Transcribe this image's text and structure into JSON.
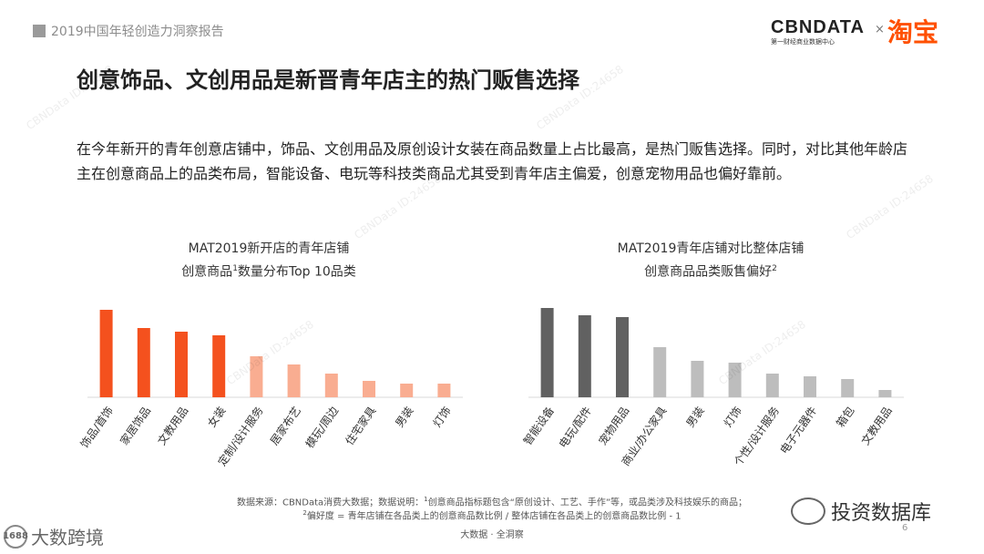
{
  "header": {
    "report_label": "2019中国年轻创造力洞察报告"
  },
  "logos": {
    "cbn_main": "CBNDATA",
    "cbn_sub": "第一财经商业数据中心",
    "times": "×",
    "taobao": "淘宝"
  },
  "title": "创意饰品、文创用品是新晋青年店主的热门贩售选择",
  "intro": "在今年新开的青年创意店铺中，饰品、文创用品及原创设计女装在商品数量上占比最高，是热门贩售选择。同时，对比其他年龄店主在创意商品上的品类布局，智能设备、电玩等科技类商品尤其受到青年店主偏爱，创意宠物用品也偏好靠前。",
  "chart_data": [
    {
      "type": "bar",
      "title_line1": "MAT2019新开店的青年店铺",
      "title_line2_pre": "创意商品",
      "title_sup": "1",
      "title_line2_post": "数量分布Top 10品类",
      "categories": [
        "饰品/首饰",
        "家居饰品",
        "文教用品",
        "女装",
        "定制/设计服务",
        "居家布艺",
        "模玩/周边",
        "住宅家具",
        "男装",
        "灯饰"
      ],
      "values": [
        96,
        76,
        72,
        68,
        45,
        36,
        26,
        18,
        15,
        15
      ],
      "ylim": [
        0,
        100
      ],
      "colors": [
        "#f4511e",
        "#f4511e",
        "#f4511e",
        "#f4511e",
        "#f9ad91",
        "#f9ad91",
        "#f9ad91",
        "#f9ad91",
        "#f9ad91",
        "#f9ad91"
      ]
    },
    {
      "type": "bar",
      "title_line1": "MAT2019青年店铺对比整体店铺",
      "title_line2_pre": "创意商品品类贩售偏好",
      "title_sup": "2",
      "title_line2_post": "",
      "categories": [
        "智能设备",
        "电玩/配件",
        "宠物用品",
        "商业/办公家具",
        "男装",
        "灯饰",
        "个性/设计服务",
        "电子元器件",
        "箱包",
        "文教用品"
      ],
      "values": [
        98,
        90,
        88,
        55,
        40,
        38,
        26,
        23,
        20,
        8
      ],
      "ylim": [
        0,
        100
      ],
      "colors": [
        "#616161",
        "#616161",
        "#616161",
        "#bdbdbd",
        "#bdbdbd",
        "#bdbdbd",
        "#bdbdbd",
        "#bdbdbd",
        "#bdbdbd",
        "#bdbdbd"
      ]
    }
  ],
  "footnote": {
    "line1_pre": "数据来源：CBNData消费大数据；数据说明：",
    "line1_sup": "1",
    "line1_post": "创意商品指标题包含“原创设计、工艺、手作”等，或品类涉及科技娱乐的商品；",
    "line2_sup": "2",
    "line2_post": "偏好度 = 青年店铺在各品类上的创意商品数比例 / 整体店铺在各品类上的创意商品数比例 - 1"
  },
  "footer": {
    "center": "大数据 · 全洞察",
    "page": "6"
  },
  "watermarks": {
    "left_badge": "1688",
    "left_text": "大数跨境",
    "right_text": "投资数据库",
    "repeat": "CBNData ID:24658"
  }
}
